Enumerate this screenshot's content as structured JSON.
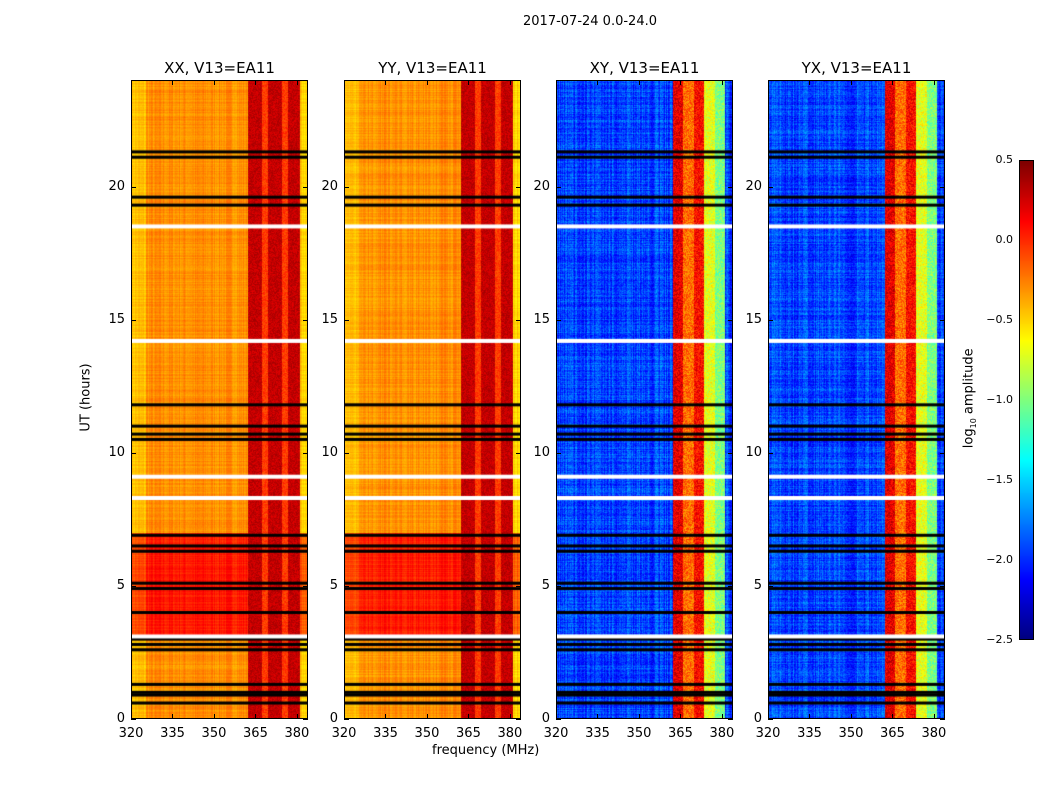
{
  "chart_data": {
    "type": "heatmap",
    "title": "2017-07-24 0.0-24.0",
    "xlabel": "frequency (MHz)",
    "ylabel": "UT (hours)",
    "xlim": [
      320,
      384
    ],
    "ylim": [
      0,
      24
    ],
    "xticks": [
      "320",
      "335",
      "350",
      "365",
      "380"
    ],
    "yticks": [
      "0",
      "5",
      "10",
      "15",
      "20"
    ],
    "panels": [
      {
        "title": "XX, V13=EA11",
        "kind": "parallel"
      },
      {
        "title": "YY, V13=EA11",
        "kind": "parallel"
      },
      {
        "title": "XY, V13=EA11",
        "kind": "cross"
      },
      {
        "title": "YX, V13=EA11",
        "kind": "cross"
      }
    ],
    "colorbar": {
      "label": "log10 amplitude",
      "label_main": "log",
      "label_sub": "10",
      "label_rest": " amplitude",
      "range": [
        -2.5,
        0.5
      ],
      "ticks": [
        "0.5",
        "0.0",
        "−0.5",
        "−1.0",
        "−1.5",
        "−2.0",
        "−2.5"
      ],
      "colormap": "jet"
    },
    "typical_log10_amplitude": {
      "parallel_background": -0.45,
      "parallel_hours_3_to_7": -0.1,
      "parallel_rfi_band": 0.3,
      "cross_background": -2.3,
      "cross_rfi_band": -0.3
    },
    "rfi_band_mhz": [
      362,
      381
    ],
    "flagged_hours_black": [
      0.6,
      0.9,
      1.0,
      1.3,
      2.6,
      2.8,
      3.0,
      4.0,
      4.9,
      5.1,
      6.3,
      6.5,
      6.9,
      10.5,
      10.7,
      11.0,
      11.8,
      19.3,
      19.6,
      21.1,
      21.3
    ],
    "flagged_hours_white": [
      3.1,
      8.3,
      9.1,
      14.2,
      18.5
    ]
  }
}
